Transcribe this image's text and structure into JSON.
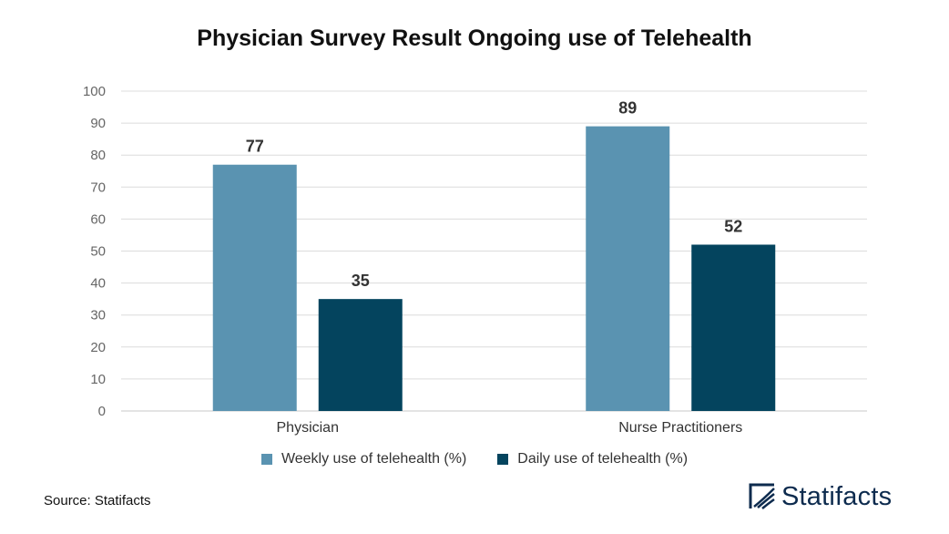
{
  "colors": {
    "weekly": "#5a93b1",
    "daily": "#04445e",
    "grid": "#dcdcdc",
    "brand": "#0d2b4e"
  },
  "chart_data": {
    "type": "bar",
    "title": "Physician Survey Result Ongoing use of Telehealth",
    "categories": [
      "Physician",
      "Nurse Practitioners"
    ],
    "series": [
      {
        "name": "Weekly use of telehealth (%)",
        "values": [
          77,
          89
        ]
      },
      {
        "name": "Daily use of telehealth (%)",
        "values": [
          35,
          52
        ]
      }
    ],
    "ylim": [
      0,
      100
    ],
    "yticks": [
      0,
      10,
      20,
      30,
      40,
      50,
      60,
      70,
      80,
      90,
      100
    ],
    "grid": true,
    "legend_position": "bottom"
  },
  "footer": {
    "source": "Source: Statifacts",
    "brand_name": "Statifacts",
    "brand_icon": "statifacts-logo-icon"
  }
}
